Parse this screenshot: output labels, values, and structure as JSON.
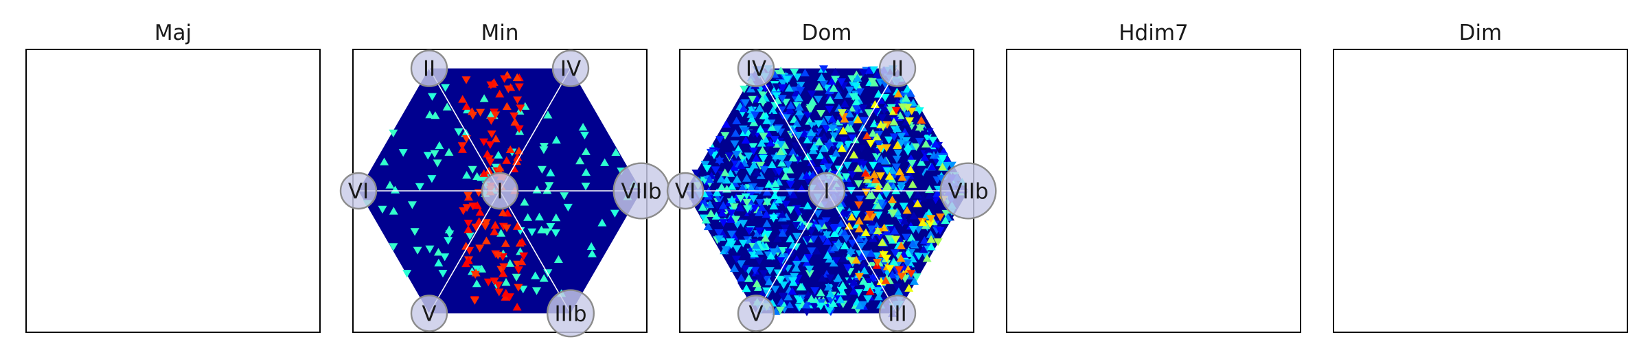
{
  "figure": {
    "background": "#ffffff"
  },
  "colors": {
    "frame": "#000000",
    "hex_fill": "#00008f",
    "axis_line": "#ffffff",
    "node_fill": "#c8cae8",
    "node_stroke": "#8c8c8c",
    "text": "#1a1a1a",
    "cmap": "jet"
  },
  "chart_data": [
    {
      "type": "heatmap",
      "title": "Maj",
      "empty": true,
      "nodes": []
    },
    {
      "type": "heatmap",
      "title": "Min",
      "empty": false,
      "grid": "triangular hexagon",
      "background_value": 0.0,
      "density": {
        "sparse_scatter": {
          "count": 140,
          "value": 0.42,
          "x_range": [
            -1,
            1
          ],
          "y_range": [
            -0.85,
            0.85
          ]
        },
        "band": {
          "count": 110,
          "value": 0.85,
          "x_center": -0.05,
          "x_halfwidth": 0.22,
          "y_range": [
            -0.95,
            0.95
          ]
        },
        "hot": []
      },
      "nodes": [
        {
          "label": "II",
          "pos": "top-left",
          "size": 1.0
        },
        {
          "label": "IV",
          "pos": "top-right",
          "size": 1.0
        },
        {
          "label": "VI",
          "pos": "left",
          "size": 1.0
        },
        {
          "label": "I",
          "pos": "center",
          "size": 1.0
        },
        {
          "label": "VIIb",
          "pos": "right",
          "size": 1.55
        },
        {
          "label": "V",
          "pos": "bottom-left",
          "size": 1.0
        },
        {
          "label": "IIIb",
          "pos": "bottom-right",
          "size": 1.3
        }
      ]
    },
    {
      "type": "heatmap",
      "title": "Dom",
      "empty": false,
      "grid": "triangular hexagon",
      "background_value": 0.0,
      "density": {
        "sparse_scatter": {
          "count": 1500,
          "value": 0.25,
          "x_range": [
            -1,
            1
          ],
          "y_range": [
            -1,
            1
          ]
        },
        "band": null,
        "hot": [
          {
            "count": 80,
            "value": 0.62,
            "x_range": [
              0.1,
              0.9
            ],
            "y_range": [
              -0.8,
              0.8
            ]
          },
          {
            "count": 35,
            "value": 0.75,
            "x_range": [
              0.2,
              0.7
            ],
            "y_range": [
              -0.8,
              0.9
            ]
          }
        ]
      },
      "nodes": [
        {
          "label": "IV",
          "pos": "top-left",
          "size": 1.0
        },
        {
          "label": "II",
          "pos": "top-right",
          "size": 1.0
        },
        {
          "label": "VI",
          "pos": "left",
          "size": 1.0
        },
        {
          "label": "I",
          "pos": "center",
          "size": 1.0
        },
        {
          "label": "VIIb",
          "pos": "right",
          "size": 1.55
        },
        {
          "label": "V",
          "pos": "bottom-left",
          "size": 1.0
        },
        {
          "label": "III",
          "pos": "bottom-right",
          "size": 1.0
        }
      ]
    },
    {
      "type": "heatmap",
      "title": "Hdim7",
      "empty": true,
      "nodes": []
    },
    {
      "type": "heatmap",
      "title": "Dim",
      "empty": true,
      "nodes": []
    }
  ]
}
